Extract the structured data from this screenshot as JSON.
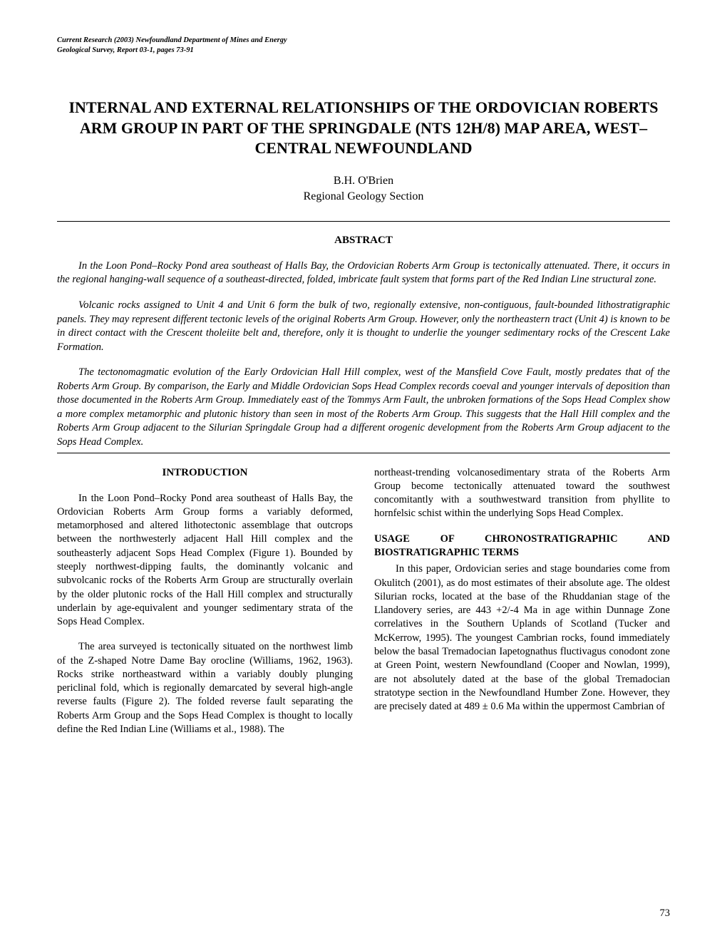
{
  "citation": {
    "line1": "Current Research (2003) Newfoundland Department of Mines and Energy",
    "line2": "Geological Survey, Report 03-1, pages 73-91"
  },
  "title": "INTERNAL AND EXTERNAL RELATIONSHIPS OF THE ORDOVICIAN ROBERTS ARM GROUP IN PART OF THE SPRINGDALE (NTS 12H/8) MAP AREA, WEST–CENTRAL NEWFOUNDLAND",
  "author": {
    "name": "B.H. O'Brien",
    "affiliation": "Regional Geology Section"
  },
  "abstract": {
    "heading": "ABSTRACT",
    "paragraphs": [
      "In the Loon Pond–Rocky Pond area southeast of Halls Bay, the Ordovician Roberts Arm Group is tectonically attenuated. There, it occurs in the regional hanging-wall sequence of a southeast-directed, folded, imbricate fault system that forms part of the Red Indian Line structural zone.",
      "Volcanic rocks assigned to Unit 4 and Unit 6 form the bulk of two, regionally extensive, non-contiguous, fault-bounded lithostratigraphic panels. They may represent different tectonic levels of the original Roberts Arm Group. However, only the northeastern tract (Unit 4) is known to be in direct contact with the Crescent tholeiite belt and, therefore, only it is thought to underlie the younger sedimentary rocks of the Crescent Lake Formation.",
      "The tectonomagmatic evolution of the Early Ordovician Hall Hill complex, west of the Mansfield Cove Fault, mostly predates that of the Roberts Arm Group. By comparison, the Early and Middle Ordovician Sops Head Complex records coeval and younger intervals of deposition than those documented in the Roberts Arm Group. Immediately east of the Tommys Arm Fault, the unbroken formations of the Sops Head Complex show a more complex metamorphic and plutonic history than seen in most of the Roberts Arm Group. This suggests that the Hall Hill complex and the Roberts Arm Group adjacent to the Silurian Springdale Group had a different orogenic development from the Roberts Arm Group adjacent to the Sops Head Complex."
    ]
  },
  "introduction": {
    "heading": "INTRODUCTION",
    "para1": "In the Loon Pond–Rocky Pond area southeast of Halls Bay, the Ordovician Roberts Arm Group forms a variably deformed, metamorphosed and altered lithotectonic assemblage that outcrops between the northwesterly adjacent Hall Hill complex and the southeasterly adjacent Sops Head Complex (Figure 1). Bounded by steeply northwest-dipping faults, the dominantly volcanic and subvolcanic rocks of the Roberts Arm Group are structurally overlain by the older plutonic rocks of the Hall Hill complex and structurally underlain by age-equivalent and younger sedimentary strata of the Sops Head Complex.",
    "para2": "The area surveyed is tectonically situated on the northwest limb of the Z-shaped Notre Dame Bay orocline (Williams, 1962, 1963). Rocks strike northeastward within a variably doubly plunging periclinal fold, which is regionally demarcated by several high-angle reverse faults (Figure 2). The folded reverse fault separating the Roberts Arm Group and the Sops Head Complex is thought to locally define the Red Indian Line (Williams et al., 1988). The",
    "para2_continued": "northeast-trending volcanosedimentary strata of the Roberts Arm Group become tectonically attenuated toward the southwest concomitantly with a southwestward transition from phyllite to hornfelsic schist within the underlying Sops Head Complex."
  },
  "usage": {
    "heading": "USAGE OF CHRONOSTRATIGRAPHIC AND BIOSTRATIGRAPHIC TERMS",
    "para1": "In this paper, Ordovician series and stage boundaries come from Okulitch (2001), as do most estimates of their absolute age. The oldest Silurian rocks, located at the base of the Rhuddanian stage of the Llandovery series, are 443 +2/-4 Ma in age within Dunnage Zone correlatives in the Southern Uplands of Scotland (Tucker and McKerrow, 1995). The youngest Cambrian rocks, found immediately below the basal Tremadocian Iapetognathus fluctivagus conodont zone at Green Point, western Newfoundland (Cooper and Nowlan, 1999), are not absolutely dated at the base of the global Tremadocian stratotype section in the Newfoundland Humber Zone. However, they are precisely dated at 489 ± 0.6 Ma within the uppermost Cambrian of"
  },
  "pageNumber": "73"
}
